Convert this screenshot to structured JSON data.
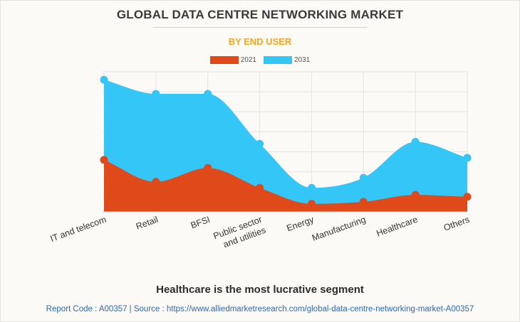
{
  "title": "GLOBAL DATA CENTRE NETWORKING MARKET",
  "subtitle": "BY END USER",
  "colors": {
    "accent": "#f5a623",
    "s2021": "#e0491a",
    "s2031": "#35c6f8",
    "grid": "#e3e3e3"
  },
  "chart_data": {
    "type": "area",
    "categories": [
      "IT and telecom",
      "Retail",
      "BFSI",
      "Public sector and utilities",
      "Energy",
      "Manufacturing",
      "Healthcare",
      "Others"
    ],
    "category_lines": [
      [
        "IT and telecom"
      ],
      [
        "Retail"
      ],
      [
        "BFSI"
      ],
      [
        "Public sector",
        "and utilities"
      ],
      [
        "Energy"
      ],
      [
        "Manufacturing"
      ],
      [
        "Healthcare"
      ],
      [
        "Others"
      ]
    ],
    "series": [
      {
        "name": "2031",
        "values": [
          6.6,
          5.9,
          5.9,
          3.4,
          1.2,
          1.7,
          3.5,
          2.7
        ]
      },
      {
        "name": "2021",
        "values": [
          2.6,
          1.5,
          2.2,
          1.2,
          0.4,
          0.5,
          0.85,
          0.75
        ]
      }
    ],
    "ylim": [
      0,
      7
    ],
    "grid": true,
    "legend": "top-center",
    "xlabel": "",
    "ylabel": ""
  },
  "caption": "Healthcare is the most lucrative segment",
  "footer": "Report Code : A00357  |  Source : https://www.alliedmarketresearch.com/global-data-centre-networking-market-A00357"
}
